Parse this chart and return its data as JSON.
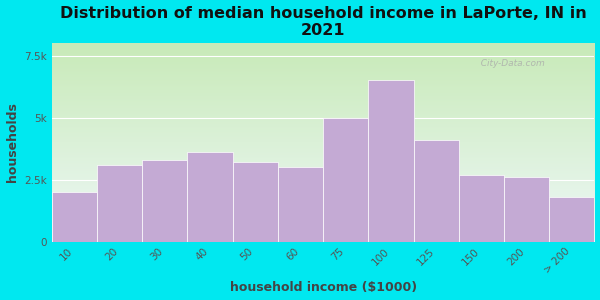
{
  "title": "Distribution of median household income in LaPorte, IN in\n2021",
  "xlabel": "household income ($1000)",
  "ylabel": "households",
  "categories": [
    "10",
    "20",
    "30",
    "40",
    "50",
    "60",
    "75",
    "100",
    "125",
    "150",
    "200",
    "> 200"
  ],
  "values": [
    2000,
    3100,
    3300,
    3600,
    3200,
    3000,
    5000,
    6500,
    4100,
    2700,
    2600,
    1800
  ],
  "bar_color": "#c4aad4",
  "bar_edge_color": "#ffffff",
  "figure_bg": "#00e8f0",
  "plot_bg_top": "#c8eab8",
  "plot_bg_bottom": "#eef8f8",
  "title_fontsize": 11.5,
  "axis_label_fontsize": 9,
  "tick_fontsize": 7.5,
  "ylim": [
    0,
    8000
  ],
  "yticks": [
    0,
    2500,
    5000,
    7500
  ],
  "ytick_labels": [
    "0",
    "2.5k",
    "5k",
    "7.5k"
  ],
  "watermark": "  City-Data.com"
}
